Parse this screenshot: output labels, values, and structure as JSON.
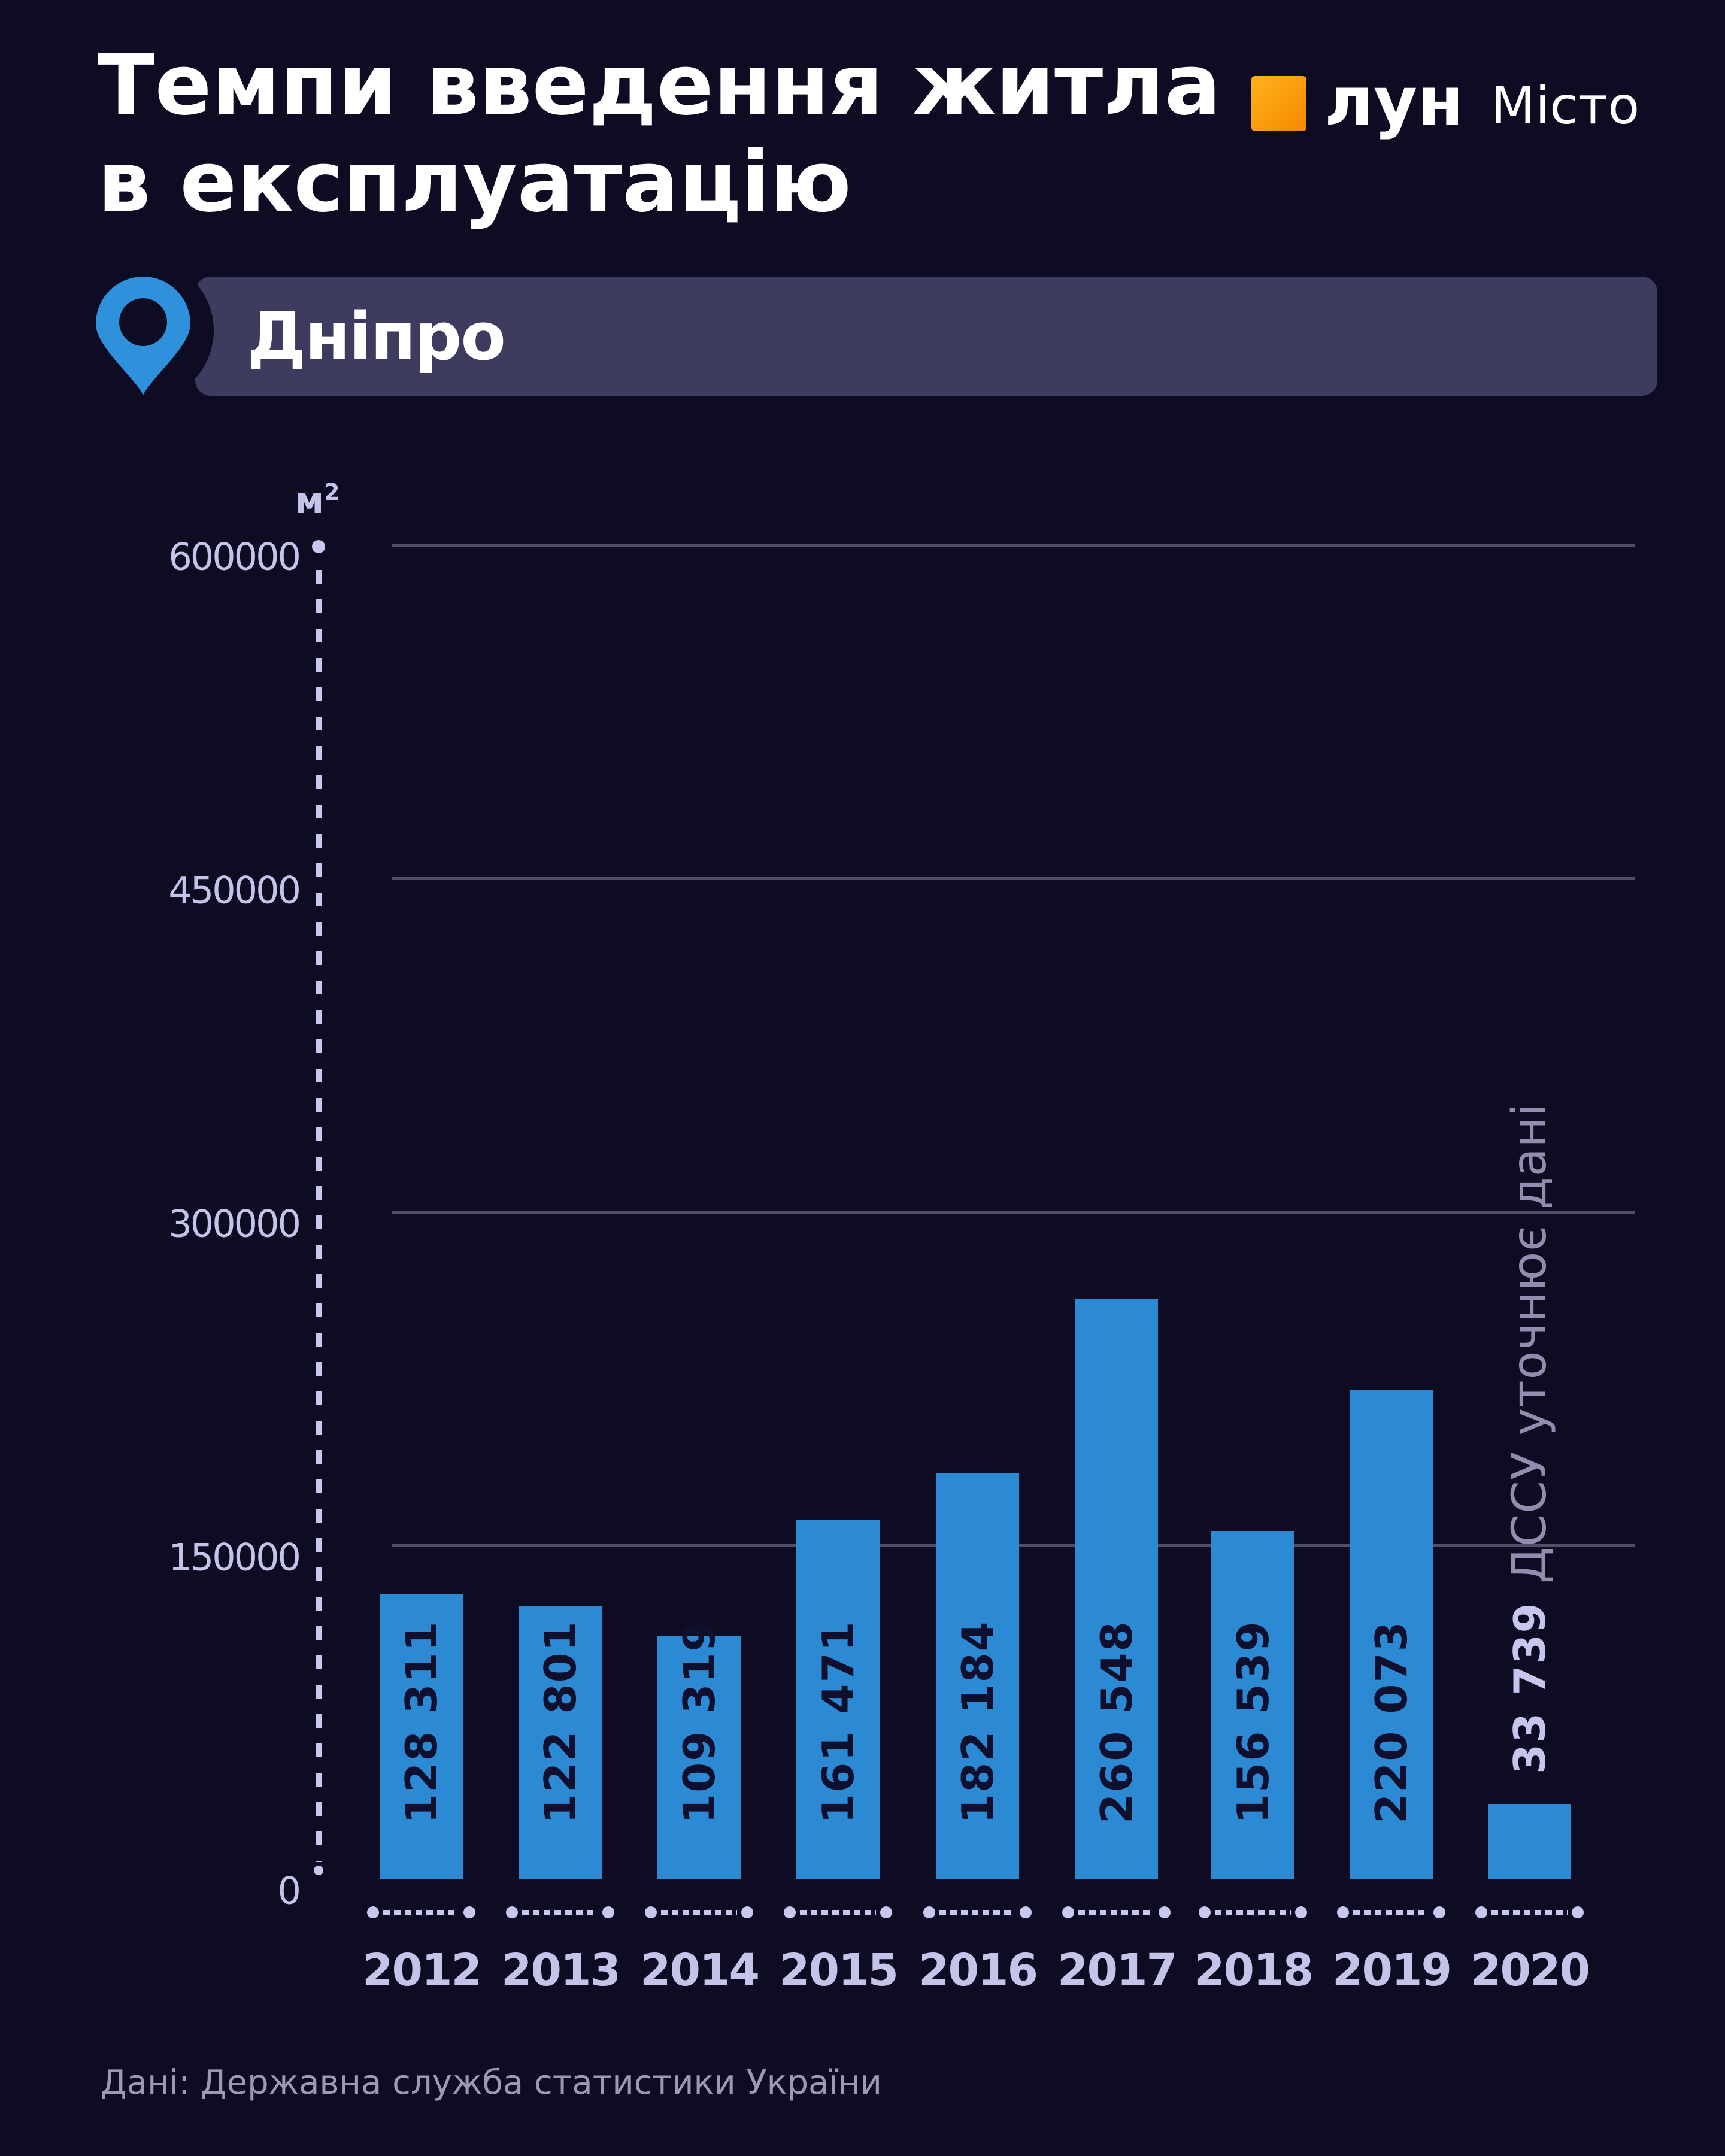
{
  "header": {
    "title_line1": "Темпи введення житла",
    "title_line2": "в експлуатацію"
  },
  "logo": {
    "brand": "лун",
    "product": "Місто",
    "accent_color": "#f78800"
  },
  "location": {
    "label": "Дніпро",
    "pin_icon": "map-pin",
    "pin_color": "#2f90dc",
    "badge_color": "#3d3c5e"
  },
  "yaxis": {
    "unit_base": "м",
    "unit_sup": "2"
  },
  "footer": {
    "source": "Дані: Державна служба статистики України"
  },
  "colors": {
    "background": "#0d0c23",
    "bar": "#2b8ad3",
    "bar_label": "#10102e",
    "axis_lavender": "#c6c3ea",
    "dots_lavender": "#c9c6ef",
    "gridline": "#504e69",
    "note_muted": "#908dae",
    "title_white": "#ffffff"
  },
  "chart_data": {
    "type": "bar",
    "title": "Темпи введення житла в експлуатацію",
    "location": "Дніпро",
    "ylabel": "м²",
    "xlabel": "",
    "categories": [
      "2012",
      "2013",
      "2014",
      "2015",
      "2016",
      "2017",
      "2018",
      "2019",
      "2020"
    ],
    "values": [
      128311,
      122801,
      109319,
      161471,
      182184,
      260548,
      156539,
      220073,
      33739
    ],
    "value_labels": [
      "128 311",
      "122 801",
      "109 319",
      "161 471",
      "182 184",
      "260 548",
      "156 539",
      "220 073",
      "33 739"
    ],
    "outside_label_categories": [
      "2020"
    ],
    "ylim": [
      0,
      600000
    ],
    "yticks": [
      0,
      150000,
      300000,
      450000,
      600000
    ],
    "ytick_labels": [
      "0",
      "150000",
      "300000",
      "450000",
      "600000"
    ],
    "grid": "horizontal",
    "legend": false,
    "annotation": {
      "text": "ДССУ уточнює дані",
      "applies_to": "2020"
    },
    "source": "Дані: Державна служба статистики України"
  }
}
